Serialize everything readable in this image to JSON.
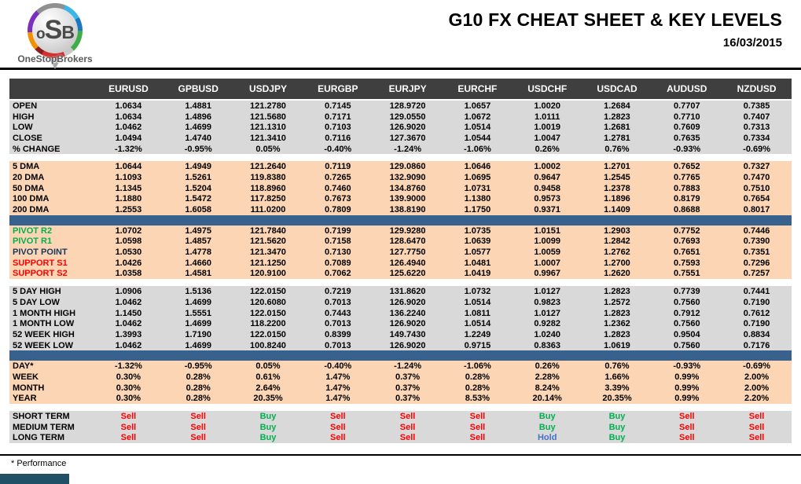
{
  "colors": {
    "header_bg": "#3f3f3f",
    "gray": "#d9d9d9",
    "peach": "#fcd5b4",
    "divider": "#39618e",
    "green": "#00b050",
    "red": "#ff0000",
    "navy": "#17375d",
    "hold_blue": "#4472c4"
  },
  "header": {
    "logo": {
      "o": "o",
      "s": "S",
      "b": "B",
      "brand": "OneStopBrokers"
    },
    "title": "G10 FX CHEAT SHEET & KEY LEVELS",
    "date": "16/03/2015"
  },
  "table": {
    "columns": [
      "EURUSD",
      "GPBUSD",
      "USDJPY",
      "EURGBP",
      "EURJPY",
      "EURCHF",
      "USDCHF",
      "USDCAD",
      "AUDUSD",
      "NZDUSD"
    ],
    "sections": [
      {
        "name": "ohlc",
        "bg": "gray",
        "signal": false,
        "after": "gap",
        "rows": [
          {
            "label": "OPEN",
            "values": [
              "1.0634",
              "1.4881",
              "121.2780",
              "0.7145",
              "128.9720",
              "1.0657",
              "1.0020",
              "1.2684",
              "0.7707",
              "0.7385"
            ]
          },
          {
            "label": "HIGH",
            "values": [
              "1.0634",
              "1.4896",
              "121.5680",
              "0.7171",
              "129.0550",
              "1.0672",
              "1.0111",
              "1.2823",
              "0.7710",
              "0.7407"
            ]
          },
          {
            "label": "LOW",
            "values": [
              "1.0462",
              "1.4699",
              "121.1310",
              "0.7103",
              "126.9020",
              "1.0514",
              "1.0019",
              "1.2681",
              "0.7609",
              "0.7313"
            ]
          },
          {
            "label": "CLOSE",
            "values": [
              "1.0494",
              "1.4740",
              "121.3410",
              "0.7116",
              "127.3670",
              "1.0544",
              "1.0047",
              "1.2781",
              "0.7635",
              "0.7334"
            ]
          },
          {
            "label": "% CHANGE",
            "values": [
              "-1.32%",
              "-0.95%",
              "0.05%",
              "-0.40%",
              "-1.24%",
              "-1.06%",
              "0.26%",
              "0.76%",
              "-0.93%",
              "-0.69%"
            ]
          }
        ]
      },
      {
        "name": "dma",
        "bg": "peach",
        "signal": false,
        "after": "divider",
        "rows": [
          {
            "label": "5 DMA",
            "values": [
              "1.0644",
              "1.4949",
              "121.2640",
              "0.7119",
              "129.0860",
              "1.0646",
              "1.0002",
              "1.2701",
              "0.7652",
              "0.7327"
            ]
          },
          {
            "label": "20 DMA",
            "values": [
              "1.1093",
              "1.5261",
              "119.8380",
              "0.7265",
              "132.9090",
              "1.0695",
              "0.9647",
              "1.2545",
              "0.7765",
              "0.7470"
            ]
          },
          {
            "label": "50 DMA",
            "values": [
              "1.1345",
              "1.5204",
              "118.8960",
              "0.7460",
              "134.8760",
              "1.0731",
              "0.9458",
              "1.2378",
              "0.7883",
              "0.7510"
            ]
          },
          {
            "label": "100 DMA",
            "values": [
              "1.1880",
              "1.5472",
              "117.8250",
              "0.7673",
              "139.9000",
              "1.1380",
              "0.9573",
              "1.1896",
              "0.8179",
              "0.7654"
            ]
          },
          {
            "label": "200 DMA",
            "values": [
              "1.2553",
              "1.6058",
              "111.0200",
              "0.7809",
              "138.8190",
              "1.1750",
              "0.9371",
              "1.1409",
              "0.8688",
              "0.8017"
            ]
          }
        ]
      },
      {
        "name": "pivots",
        "bg": "peach",
        "signal": false,
        "after": "gap",
        "rows": [
          {
            "label": "PIVOT R2",
            "color": "green",
            "values": [
              "1.0702",
              "1.4975",
              "121.7840",
              "0.7199",
              "129.9280",
              "1.0735",
              "1.0151",
              "1.2903",
              "0.7752",
              "0.7446"
            ]
          },
          {
            "label": "PIVOT R1",
            "color": "green",
            "values": [
              "1.0598",
              "1.4857",
              "121.5620",
              "0.7158",
              "128.6470",
              "1.0639",
              "1.0099",
              "1.2842",
              "0.7693",
              "0.7390"
            ]
          },
          {
            "label": "PIVOT POINT",
            "color": "navy",
            "values": [
              "1.0530",
              "1.4778",
              "121.3470",
              "0.7130",
              "127.7750",
              "1.0577",
              "1.0059",
              "1.2762",
              "0.7651",
              "0.7351"
            ]
          },
          {
            "label": "SUPPORT S1",
            "color": "red",
            "values": [
              "1.0426",
              "1.4660",
              "121.1250",
              "0.7089",
              "126.4940",
              "1.0481",
              "1.0007",
              "1.2700",
              "0.7593",
              "0.7296"
            ]
          },
          {
            "label": "SUPPORT S2",
            "color": "red",
            "values": [
              "1.0358",
              "1.4581",
              "120.9100",
              "0.7062",
              "125.6220",
              "1.0419",
              "0.9967",
              "1.2620",
              "0.7551",
              "0.7257"
            ]
          }
        ]
      },
      {
        "name": "ranges",
        "bg": "gray",
        "signal": false,
        "after": "divider",
        "rows": [
          {
            "label": "5 DAY HIGH",
            "values": [
              "1.0906",
              "1.5136",
              "122.0150",
              "0.7219",
              "131.8620",
              "1.0732",
              "1.0127",
              "1.2823",
              "0.7739",
              "0.7441"
            ]
          },
          {
            "label": "5 DAY LOW",
            "values": [
              "1.0462",
              "1.4699",
              "120.6080",
              "0.7013",
              "126.9020",
              "1.0514",
              "0.9823",
              "1.2572",
              "0.7560",
              "0.7190"
            ]
          },
          {
            "label": "1 MONTH HIGH",
            "values": [
              "1.1450",
              "1.5551",
              "122.0150",
              "0.7443",
              "136.2240",
              "1.0811",
              "1.0127",
              "1.2823",
              "0.7912",
              "0.7612"
            ]
          },
          {
            "label": "1 MONTH LOW",
            "values": [
              "1.0462",
              "1.4699",
              "118.2200",
              "0.7013",
              "126.9020",
              "1.0514",
              "0.9282",
              "1.2362",
              "0.7560",
              "0.7190"
            ]
          },
          {
            "label": "52 WEEK HIGH",
            "values": [
              "1.3993",
              "1.7190",
              "122.0150",
              "0.8399",
              "149.7430",
              "1.2249",
              "1.0240",
              "1.2823",
              "0.9504",
              "0.8834"
            ]
          },
          {
            "label": "52 WEEK LOW",
            "values": [
              "1.0462",
              "1.4699",
              "100.8240",
              "0.7013",
              "126.9020",
              "0.9715",
              "0.8363",
              "1.0619",
              "0.7560",
              "0.7176"
            ]
          }
        ]
      },
      {
        "name": "performance",
        "bg": "peach",
        "signal": false,
        "after": "gap",
        "rows": [
          {
            "label": "DAY*",
            "values": [
              "-1.32%",
              "-0.95%",
              "0.05%",
              "-0.40%",
              "-1.24%",
              "-1.06%",
              "0.26%",
              "0.76%",
              "-0.93%",
              "-0.69%"
            ]
          },
          {
            "label": "WEEK",
            "values": [
              "0.30%",
              "0.28%",
              "0.61%",
              "1.47%",
              "0.37%",
              "0.28%",
              "2.28%",
              "1.66%",
              "0.99%",
              "2.00%"
            ]
          },
          {
            "label": "MONTH",
            "values": [
              "0.30%",
              "0.28%",
              "2.64%",
              "1.47%",
              "0.37%",
              "0.28%",
              "8.24%",
              "3.39%",
              "0.99%",
              "2.00%"
            ]
          },
          {
            "label": "YEAR",
            "values": [
              "0.30%",
              "0.28%",
              "20.35%",
              "1.47%",
              "0.37%",
              "8.53%",
              "20.14%",
              "20.35%",
              "0.99%",
              "2.20%"
            ]
          }
        ]
      },
      {
        "name": "signals",
        "bg": "gray",
        "signal": true,
        "after": null,
        "rows": [
          {
            "label": "SHORT TERM",
            "values": [
              "Sell",
              "Sell",
              "Buy",
              "Sell",
              "Sell",
              "Sell",
              "Buy",
              "Buy",
              "Sell",
              "Sell"
            ]
          },
          {
            "label": "MEDIUM TERM",
            "values": [
              "Sell",
              "Sell",
              "Buy",
              "Sell",
              "Sell",
              "Sell",
              "Buy",
              "Buy",
              "Sell",
              "Sell"
            ]
          },
          {
            "label": "LONG TERM",
            "values": [
              "Sell",
              "Sell",
              "Buy",
              "Sell",
              "Sell",
              "Sell",
              "Hold",
              "Buy",
              "Sell",
              "Sell"
            ]
          }
        ]
      }
    ]
  },
  "footer": {
    "note": "* Performance"
  }
}
